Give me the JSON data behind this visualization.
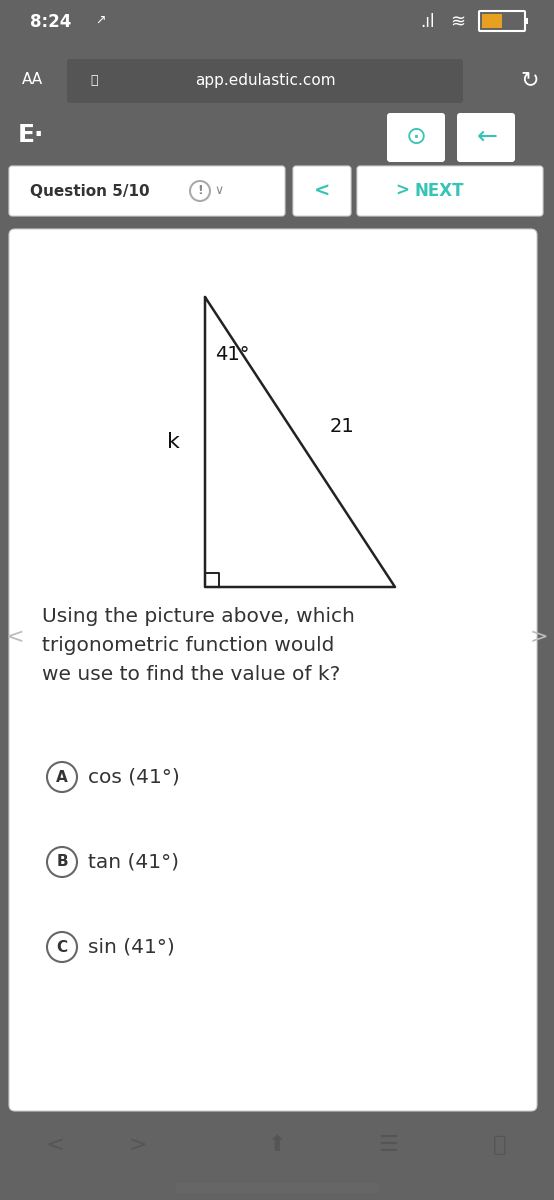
{
  "bg_top": "#636363",
  "bg_browser": "#4a4a4a",
  "bg_edulastic_bar": "#35c4b5",
  "bg_content": "#e8e8e8",
  "bg_white_card": "#ffffff",
  "bg_bottom_bar": "#c8c8c8",
  "status_time": "8:24",
  "url": "app.edulastic.com",
  "question_label": "Question 5/10",
  "next_label": "NEXT",
  "question_text": "Using the picture above, which\ntrigonometric function would\nwe use to find the value of k?",
  "choices": [
    "cos (41°)",
    "tan (41°)",
    "sin (41°)"
  ],
  "choice_labels": [
    "A",
    "B",
    "C"
  ],
  "angle_label": "41°",
  "hyp_label": "21",
  "side_label": "k",
  "teal_color": "#35c4b5",
  "dark_text": "#333333",
  "gray_text": "#888888"
}
